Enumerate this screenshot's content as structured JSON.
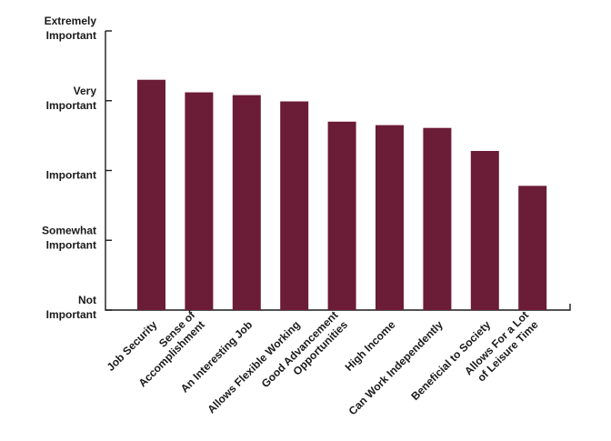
{
  "chart_data": {
    "type": "bar",
    "title": "",
    "xlabel": "",
    "ylabel": "",
    "categories": [
      [
        "Job Security"
      ],
      [
        "Sense of",
        "Accomplishment"
      ],
      [
        "An Interesting Job"
      ],
      [
        "Allows Flexible Working"
      ],
      [
        "Good Advancement",
        "Opportunities"
      ],
      [
        "High Income"
      ],
      [
        "Can Work Independently"
      ],
      [
        "Beneficial to Society"
      ],
      [
        "Allows For a Lot",
        "of Leisure Time"
      ]
    ],
    "values": [
      3.3,
      3.12,
      3.08,
      2.99,
      2.7,
      2.65,
      2.61,
      2.28,
      1.78
    ],
    "ylim": [
      0,
      4
    ],
    "yticks": [
      {
        "value": 0,
        "lines": [
          "Not",
          "Important"
        ]
      },
      {
        "value": 1,
        "lines": [
          "Somewhat",
          "Important"
        ]
      },
      {
        "value": 2,
        "lines": [
          "Important"
        ]
      },
      {
        "value": 3,
        "lines": [
          "Very",
          "Important"
        ]
      },
      {
        "value": 4,
        "lines": [
          "Extremely",
          "Important"
        ]
      }
    ],
    "grid": false,
    "bar_color": "#6b1c37",
    "axis_color": "#1a1a1a"
  }
}
